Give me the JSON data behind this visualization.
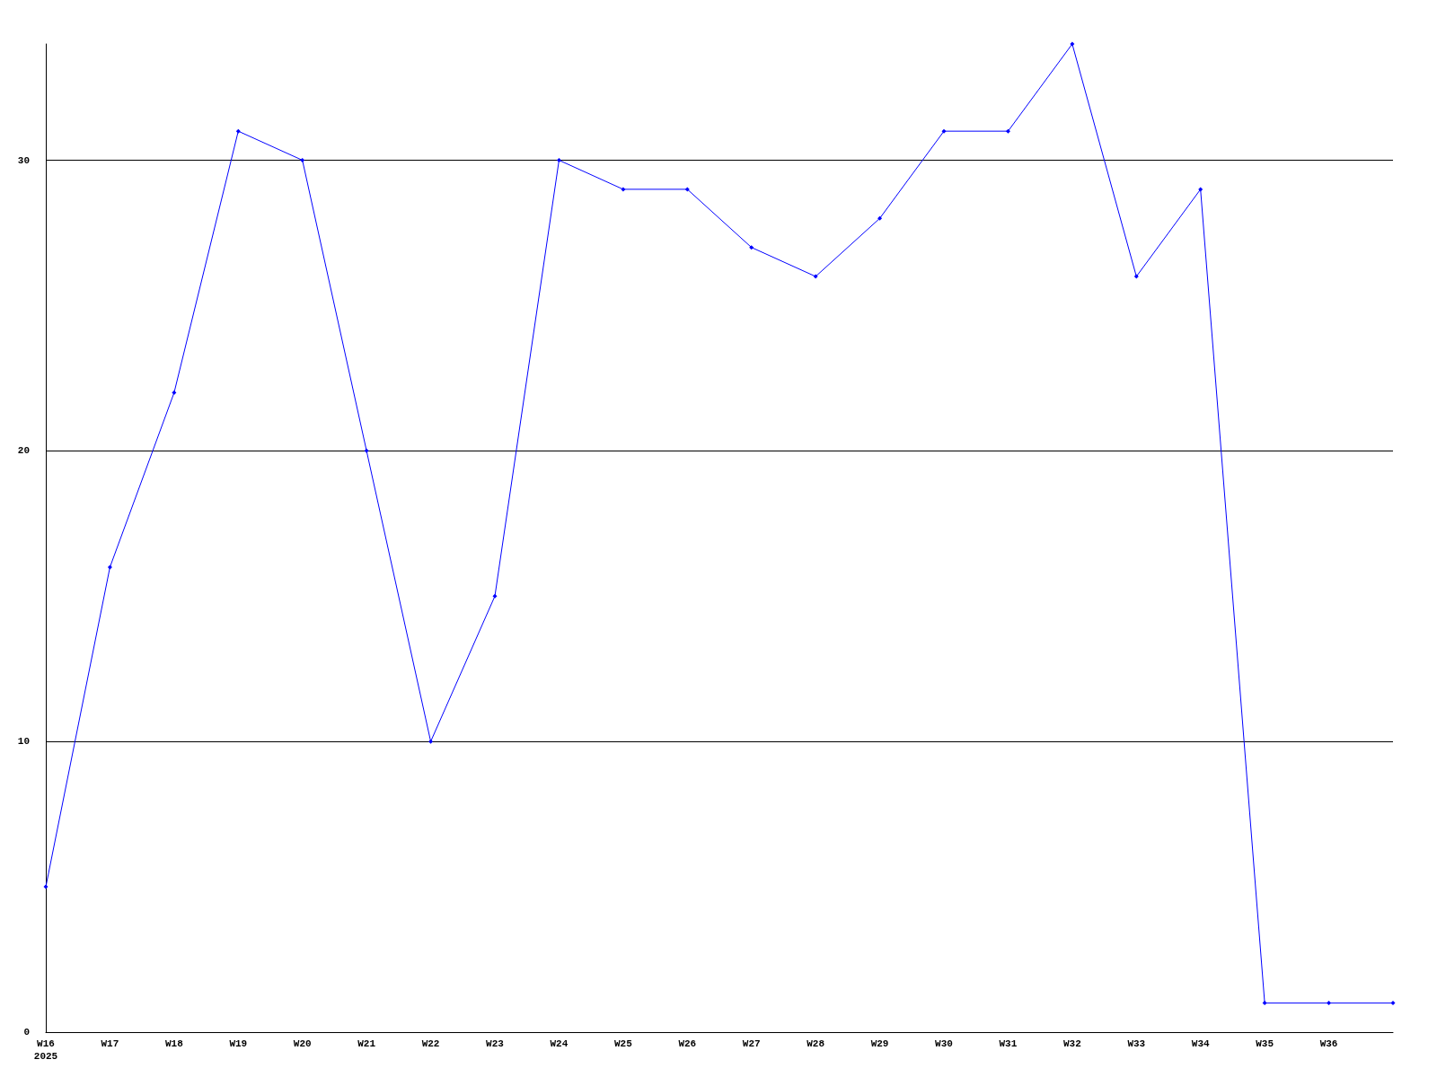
{
  "chart_data": {
    "type": "line",
    "categories": [
      "W16\n2025",
      "W17",
      "W18",
      "W19",
      "W20",
      "W21",
      "W22",
      "W23",
      "W24",
      "W25",
      "W26",
      "W27",
      "W28",
      "W29",
      "W30",
      "W31",
      "W32",
      "W33",
      "W34",
      "W35",
      "W36",
      null
    ],
    "values": [
      5,
      16,
      22,
      31,
      30,
      20,
      10,
      15,
      30,
      29,
      29,
      27,
      26,
      28,
      31,
      31,
      34,
      26,
      29,
      1,
      1,
      1
    ],
    "color": "#0000ff",
    "marker": "diamond",
    "ylim": [
      0,
      34
    ],
    "yticks": [
      0,
      10,
      20,
      30
    ],
    "grid": "y"
  }
}
